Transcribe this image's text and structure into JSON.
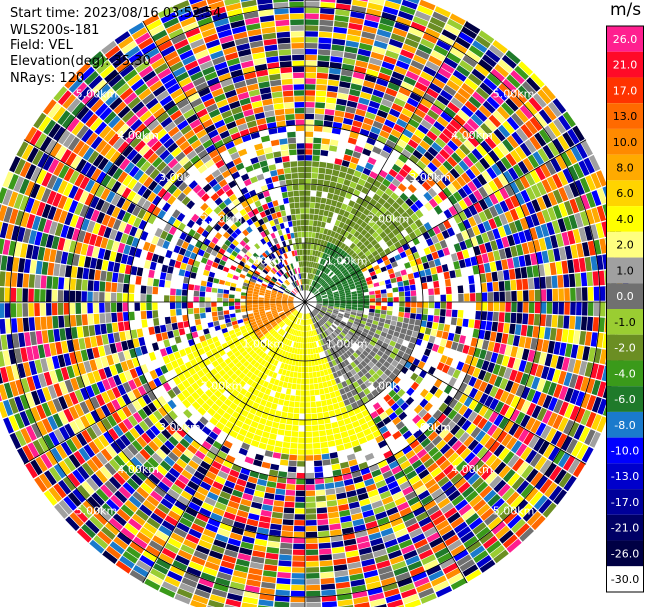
{
  "header": {
    "start_time": "Start time: 2023/08/16 03:52:54",
    "instrument": "WLS200s-181",
    "field": "Field: VEL",
    "elevation": "Elevation(deg): 35.30",
    "nrays": "NRays: 120"
  },
  "colorbar": {
    "unit": "m/s",
    "levels": [
      {
        "label": "26.0",
        "color": "#ff1f8f"
      },
      {
        "label": "21.0",
        "color": "#ff0a28"
      },
      {
        "label": "17.0",
        "color": "#ff3300"
      },
      {
        "label": "13.0",
        "color": "#ff6a00"
      },
      {
        "label": "10.0",
        "color": "#ff8a00"
      },
      {
        "label": "8.0",
        "color": "#ffaa00"
      },
      {
        "label": "6.0",
        "color": "#ffd400"
      },
      {
        "label": "4.0",
        "color": "#ffff00"
      },
      {
        "label": "2.0",
        "color": "#ffff80"
      },
      {
        "label": "1.0",
        "color": "#a0a0a0"
      },
      {
        "label": "0.0",
        "color": "#707070"
      },
      {
        "label": "-1.0",
        "color": "#9acd32"
      },
      {
        "label": "-2.0",
        "color": "#6b8e23"
      },
      {
        "label": "-4.0",
        "color": "#3a9a1a"
      },
      {
        "label": "-6.0",
        "color": "#1f7a2a"
      },
      {
        "label": "-8.0",
        "color": "#1a7acc"
      },
      {
        "label": "-10.0",
        "color": "#0000ff"
      },
      {
        "label": "-13.0",
        "color": "#0000cc"
      },
      {
        "label": "-17.0",
        "color": "#000099"
      },
      {
        "label": "-21.0",
        "color": "#000066"
      },
      {
        "label": "-26.0",
        "color": "#000044"
      },
      {
        "label": "-30.0",
        "color": "#ffffff"
      }
    ]
  },
  "chart_data": {
    "type": "heatmap",
    "projection": "polar-ppi",
    "field": "VEL",
    "nrays": 120,
    "range_rings_km": [
      1,
      2,
      3,
      4,
      5
    ],
    "ring_labels": [
      "1.00km",
      "2.00km",
      "3.00km",
      "4.00km",
      "5.00km"
    ],
    "ring_label_angles_deg": [
      45,
      135,
      225,
      315
    ],
    "max_range_km": 5.5,
    "sectors": [
      {
        "from_deg": 350,
        "to_deg": 60,
        "max_km": 2.4,
        "value": -2.0
      },
      {
        "from_deg": 20,
        "to_deg": 150,
        "max_km": 1.1,
        "value": -6.0
      },
      {
        "from_deg": 150,
        "to_deg": 250,
        "max_km": 2.6,
        "value": 4.0
      },
      {
        "from_deg": 230,
        "to_deg": 290,
        "max_km": 1.0,
        "value": 10.0
      },
      {
        "from_deg": 100,
        "to_deg": 160,
        "max_km": 2.0,
        "value": 0.0
      }
    ]
  }
}
